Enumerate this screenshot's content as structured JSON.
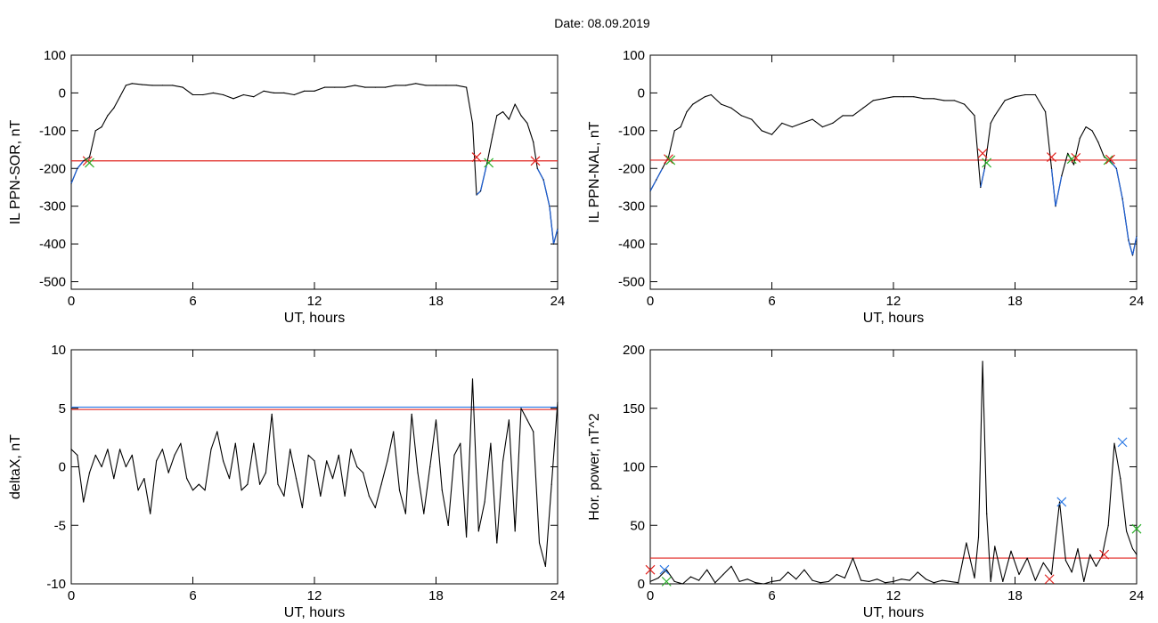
{
  "title": "Date:  08.09.2019",
  "colors": {
    "axis": "#000000",
    "signal": "#000000",
    "threshold": "#e0201c",
    "highlight": "#1f5fd0",
    "marker_green": "#2ab02a",
    "marker_blue": "#2b78e4"
  },
  "chart_data": [
    {
      "type": "line",
      "id": "ppn-sor",
      "xlabel": "UT, hours",
      "ylabel": "IL PPN-SOR, nT",
      "xlim": [
        0,
        24
      ],
      "ylim": [
        -520,
        100
      ],
      "xticks": [
        0,
        6,
        12,
        18,
        24
      ],
      "yticks": [
        100,
        0,
        -100,
        -200,
        -300,
        -400,
        -500
      ],
      "threshold": -180,
      "series": [
        {
          "x": [
            0,
            0.3,
            0.6,
            0.9,
            1.2,
            1.5,
            1.8,
            2.1,
            2.4,
            2.7,
            3.0,
            3.5,
            4.0,
            4.5,
            5.0,
            5.5,
            6.0,
            6.5,
            7.0,
            7.5,
            8.0,
            8.5,
            9.0,
            9.5,
            10.0,
            10.5,
            11.0,
            11.5,
            12.0,
            12.5,
            13.0,
            13.5,
            14.0,
            14.5,
            15.0,
            15.5,
            16.0,
            16.5,
            17.0,
            17.5,
            18.0,
            18.5,
            19.0,
            19.5,
            19.8,
            20.0,
            20.2,
            20.5,
            20.8,
            21.0,
            21.3,
            21.6,
            21.9,
            22.2,
            22.5,
            22.8,
            23.0,
            23.3,
            23.6,
            23.8,
            24.0
          ],
          "y": [
            -240,
            -200,
            -180,
            -170,
            -100,
            -90,
            -60,
            -40,
            -10,
            20,
            25,
            22,
            20,
            20,
            20,
            15,
            -5,
            -5,
            0,
            -5,
            -15,
            -5,
            -10,
            5,
            0,
            0,
            -5,
            5,
            5,
            15,
            15,
            15,
            20,
            15,
            15,
            15,
            20,
            20,
            25,
            20,
            20,
            20,
            20,
            15,
            -80,
            -270,
            -260,
            -190,
            -110,
            -60,
            -50,
            -70,
            -30,
            -60,
            -80,
            -130,
            -200,
            -230,
            -300,
            -400,
            -360
          ]
        }
      ],
      "markers": [
        {
          "x": 0.8,
          "y": -180,
          "color": "red"
        },
        {
          "x": 0.9,
          "y": -185,
          "color": "green"
        },
        {
          "x": 20.0,
          "y": -170,
          "color": "red"
        },
        {
          "x": 20.6,
          "y": -185,
          "color": "green"
        },
        {
          "x": 22.9,
          "y": -180,
          "color": "red"
        }
      ]
    },
    {
      "type": "line",
      "id": "ppn-nal",
      "xlabel": "UT, hours",
      "ylabel": "IL PPN-NAL, nT",
      "xlim": [
        0,
        24
      ],
      "ylim": [
        -520,
        100
      ],
      "xticks": [
        0,
        6,
        12,
        18,
        24
      ],
      "yticks": [
        100,
        0,
        -100,
        -200,
        -300,
        -400,
        -500
      ],
      "threshold": -178,
      "series": [
        {
          "x": [
            0,
            0.3,
            0.6,
            0.9,
            1.2,
            1.5,
            1.8,
            2.1,
            2.4,
            2.7,
            3.0,
            3.5,
            4.0,
            4.5,
            5.0,
            5.5,
            6.0,
            6.5,
            7.0,
            7.5,
            8.0,
            8.5,
            9.0,
            9.5,
            10.0,
            10.5,
            11.0,
            11.5,
            12.0,
            12.5,
            13.0,
            13.5,
            14.0,
            14.5,
            15.0,
            15.5,
            16.0,
            16.3,
            16.5,
            16.8,
            17.0,
            17.5,
            18.0,
            18.5,
            19.0,
            19.5,
            19.8,
            20.0,
            20.3,
            20.6,
            20.9,
            21.2,
            21.5,
            21.8,
            22.1,
            22.4,
            22.7,
            23.0,
            23.3,
            23.6,
            23.8,
            24.0
          ],
          "y": [
            -260,
            -230,
            -200,
            -170,
            -100,
            -90,
            -50,
            -30,
            -20,
            -10,
            -5,
            -30,
            -40,
            -60,
            -70,
            -100,
            -110,
            -80,
            -90,
            -80,
            -70,
            -90,
            -80,
            -60,
            -60,
            -40,
            -20,
            -15,
            -10,
            -10,
            -10,
            -15,
            -15,
            -20,
            -20,
            -30,
            -60,
            -250,
            -200,
            -80,
            -60,
            -20,
            -10,
            -5,
            -5,
            -50,
            -200,
            -300,
            -220,
            -160,
            -190,
            -120,
            -90,
            -100,
            -130,
            -170,
            -180,
            -200,
            -280,
            -390,
            -430,
            -380
          ]
        }
      ],
      "markers": [
        {
          "x": 0.9,
          "y": -175,
          "color": "red"
        },
        {
          "x": 1.0,
          "y": -178,
          "color": "green"
        },
        {
          "x": 16.4,
          "y": -160,
          "color": "red"
        },
        {
          "x": 16.6,
          "y": -185,
          "color": "green"
        },
        {
          "x": 19.8,
          "y": -170,
          "color": "red"
        },
        {
          "x": 20.8,
          "y": -175,
          "color": "green"
        },
        {
          "x": 21.0,
          "y": -172,
          "color": "red"
        },
        {
          "x": 22.6,
          "y": -178,
          "color": "green"
        },
        {
          "x": 22.7,
          "y": -176,
          "color": "red"
        }
      ]
    },
    {
      "type": "line",
      "id": "deltax",
      "xlabel": "UT, hours",
      "ylabel": "deltaX, nT",
      "xlim": [
        0,
        24
      ],
      "ylim": [
        -10,
        10
      ],
      "xticks": [
        0,
        6,
        12,
        18,
        24
      ],
      "yticks": [
        10,
        5,
        0,
        -5,
        -10
      ],
      "threshold": 4.9,
      "threshold2": 5.1,
      "series": [
        {
          "x": [
            0,
            0.3,
            0.6,
            0.9,
            1.2,
            1.5,
            1.8,
            2.1,
            2.4,
            2.7,
            3.0,
            3.3,
            3.6,
            3.9,
            4.2,
            4.5,
            4.8,
            5.1,
            5.4,
            5.7,
            6.0,
            6.3,
            6.6,
            6.9,
            7.2,
            7.5,
            7.8,
            8.1,
            8.4,
            8.7,
            9.0,
            9.3,
            9.6,
            9.9,
            10.2,
            10.5,
            10.8,
            11.1,
            11.4,
            11.7,
            12.0,
            12.3,
            12.6,
            12.9,
            13.2,
            13.5,
            13.8,
            14.1,
            14.4,
            14.7,
            15.0,
            15.3,
            15.6,
            15.9,
            16.2,
            16.5,
            16.8,
            17.1,
            17.4,
            17.7,
            18.0,
            18.3,
            18.6,
            18.9,
            19.2,
            19.5,
            19.8,
            20.1,
            20.4,
            20.7,
            21.0,
            21.3,
            21.6,
            21.9,
            22.2,
            22.5,
            22.8,
            23.1,
            23.4,
            23.7,
            24.0
          ],
          "y": [
            1.5,
            1.0,
            -3.0,
            -0.5,
            1.0,
            0.0,
            1.5,
            -1.0,
            1.5,
            0.0,
            1.0,
            -2.0,
            -1.0,
            -4.0,
            0.5,
            1.5,
            -0.5,
            1.0,
            2.0,
            -1.0,
            -2.0,
            -1.5,
            -2.0,
            1.5,
            3.0,
            0.5,
            -1.0,
            2.0,
            -2.0,
            -1.5,
            2.0,
            -1.5,
            -0.5,
            4.5,
            -1.5,
            -2.5,
            1.5,
            -1.0,
            -3.5,
            1.0,
            0.5,
            -2.5,
            0.5,
            -1.0,
            1.0,
            -2.5,
            1.5,
            0.0,
            -0.5,
            -2.5,
            -3.5,
            -1.5,
            0.5,
            3.0,
            -2.0,
            -4.0,
            4.5,
            -0.5,
            -4.0,
            0.0,
            4.0,
            -2.0,
            -5.0,
            1.0,
            2.0,
            -6.0,
            7.5,
            -5.5,
            -3.0,
            2.0,
            -6.5,
            0.5,
            4.0,
            -5.5,
            5.0,
            4.0,
            3.0,
            -6.5,
            -8.5,
            -1.5,
            5.5
          ]
        }
      ],
      "markers": []
    },
    {
      "type": "line",
      "id": "hor-power",
      "xlabel": "UT, hours",
      "ylabel": "Hor. power, nT^2",
      "xlim": [
        0,
        24
      ],
      "ylim": [
        0,
        200
      ],
      "xticks": [
        0,
        6,
        12,
        18,
        24
      ],
      "yticks": [
        200,
        150,
        100,
        50,
        0
      ],
      "threshold": 22,
      "series": [
        {
          "x": [
            0,
            0.4,
            0.8,
            1.2,
            1.6,
            2.0,
            2.4,
            2.8,
            3.2,
            3.6,
            4.0,
            4.4,
            4.8,
            5.2,
            5.6,
            6.0,
            6.4,
            6.8,
            7.2,
            7.6,
            8.0,
            8.4,
            8.8,
            9.2,
            9.6,
            10.0,
            10.4,
            10.8,
            11.2,
            11.6,
            12.0,
            12.4,
            12.8,
            13.2,
            13.6,
            14.0,
            14.4,
            14.8,
            15.2,
            15.6,
            16.0,
            16.2,
            16.4,
            16.6,
            16.8,
            17.0,
            17.4,
            17.8,
            18.2,
            18.6,
            19.0,
            19.4,
            19.8,
            20.2,
            20.5,
            20.8,
            21.1,
            21.4,
            21.7,
            22.0,
            22.3,
            22.6,
            22.9,
            23.2,
            23.5,
            23.8,
            24.0
          ],
          "y": [
            2,
            5,
            12,
            2,
            0,
            6,
            3,
            12,
            1,
            8,
            15,
            2,
            4,
            1,
            0,
            2,
            3,
            10,
            4,
            12,
            3,
            1,
            2,
            8,
            5,
            22,
            3,
            2,
            4,
            1,
            2,
            4,
            3,
            10,
            4,
            1,
            3,
            2,
            1,
            35,
            5,
            40,
            190,
            60,
            2,
            32,
            2,
            28,
            8,
            22,
            3,
            18,
            8,
            70,
            20,
            10,
            30,
            2,
            25,
            15,
            24,
            50,
            120,
            90,
            45,
            30,
            25
          ]
        }
      ],
      "markers": [
        {
          "x": 0.0,
          "y": 12,
          "color": "red"
        },
        {
          "x": 0.7,
          "y": 12,
          "color": "blue"
        },
        {
          "x": 0.8,
          "y": 2,
          "color": "green"
        },
        {
          "x": 19.7,
          "y": 4,
          "color": "red"
        },
        {
          "x": 20.3,
          "y": 70,
          "color": "blue"
        },
        {
          "x": 22.4,
          "y": 25,
          "color": "red"
        },
        {
          "x": 23.3,
          "y": 121,
          "color": "blue"
        },
        {
          "x": 24.0,
          "y": 47,
          "color": "green"
        }
      ]
    }
  ]
}
